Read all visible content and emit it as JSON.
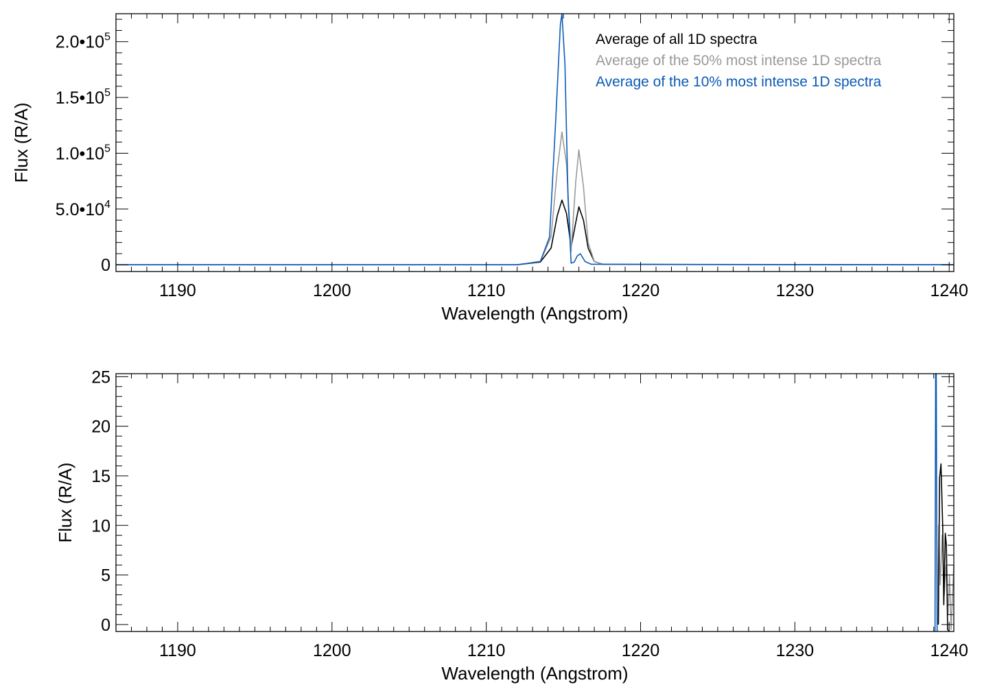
{
  "colors": {
    "all": "#000000",
    "top50": "#999999",
    "top10": "#0a5bb5"
  },
  "chart_data": [
    {
      "type": "line",
      "title": "",
      "xlabel": "Wavelength (Angstrom)",
      "ylabel": "Flux (R/A)",
      "xlim": [
        1186,
        1240.3
      ],
      "ylim": [
        -6000,
        225000
      ],
      "x_ticks": [
        1190,
        1200,
        1210,
        1220,
        1230,
        1240
      ],
      "x_tick_labels": [
        "1190",
        "1200",
        "1210",
        "1220",
        "1230",
        "1240"
      ],
      "y_ticks": [
        0,
        50000,
        100000,
        150000,
        200000
      ],
      "y_tick_labels": [
        {
          "mant": "0",
          "exp": ""
        },
        {
          "mant": "5.0•10",
          "exp": "4"
        },
        {
          "mant": "1.0•10",
          "exp": "5"
        },
        {
          "mant": "1.5•10",
          "exp": "5"
        },
        {
          "mant": "2.0•10",
          "exp": "5"
        }
      ],
      "legend": {
        "position": "top-right",
        "entries": [
          {
            "label": "Average of all 1D spectra",
            "color": "#000000"
          },
          {
            "label": "Average of the 50% most intense 1D spectra",
            "color": "#999999"
          },
          {
            "label": "Average of the 10% most intense 1D spectra",
            "color": "#0a5bb5"
          }
        ]
      },
      "series": [
        {
          "color": "#000000",
          "x": [
            1186,
            1212,
            1213.5,
            1214.2,
            1214.6,
            1214.9,
            1215.2,
            1215.5,
            1215.8,
            1216.0,
            1216.3,
            1216.6,
            1217.0,
            1217.6,
            1240.3
          ],
          "y": [
            0,
            0,
            2500,
            15000,
            44000,
            58000,
            46000,
            16000,
            38000,
            52000,
            40000,
            15000,
            3000,
            300,
            0
          ]
        },
        {
          "color": "#999999",
          "x": [
            1186,
            1212,
            1213.5,
            1214.2,
            1214.6,
            1214.9,
            1215.2,
            1215.5,
            1215.8,
            1216.0,
            1216.3,
            1216.6,
            1217.0,
            1217.6,
            1240.3
          ],
          "y": [
            0,
            0,
            3000,
            25000,
            85000,
            119000,
            90000,
            12000,
            75000,
            103000,
            70000,
            20000,
            3000,
            300,
            0
          ]
        },
        {
          "color": "#0a5bb5",
          "x": [
            1186,
            1212,
            1213.5,
            1214.1,
            1214.5,
            1214.8,
            1214.9,
            1215.1,
            1215.3,
            1215.5,
            1215.7,
            1215.9,
            1216.1,
            1216.4,
            1216.8,
            1240.3
          ],
          "y": [
            0,
            0,
            3000,
            25000,
            130000,
            215000,
            226000,
            180000,
            60000,
            1500,
            2500,
            8000,
            10000,
            3000,
            500,
            0
          ]
        }
      ]
    },
    {
      "type": "line",
      "title": "",
      "xlabel": "Wavelength (Angstrom)",
      "ylabel": "Flux (R/A)",
      "xlim": [
        1186,
        1240.3
      ],
      "ylim": [
        -0.7,
        25.3
      ],
      "x_ticks": [
        1190,
        1200,
        1210,
        1220,
        1230,
        1240
      ],
      "x_tick_labels": [
        "1190",
        "1200",
        "1210",
        "1220",
        "1230",
        "1240"
      ],
      "y_ticks": [
        0,
        5,
        10,
        15,
        20,
        25
      ],
      "y_tick_labels": [
        {
          "mant": "0",
          "exp": ""
        },
        {
          "mant": "5",
          "exp": ""
        },
        {
          "mant": "10",
          "exp": ""
        },
        {
          "mant": "15",
          "exp": ""
        },
        {
          "mant": "20",
          "exp": ""
        },
        {
          "mant": "25",
          "exp": ""
        }
      ],
      "series": [
        {
          "color": "#999999",
          "x": [
            1239.25,
            1239.32,
            1239.42,
            1239.55,
            1239.68,
            1239.8,
            1239.92,
            1240.02,
            1240.12,
            1240.22,
            1240.3
          ],
          "y": [
            0,
            10,
            4,
            9,
            3,
            6,
            1,
            5,
            -0.5,
            3,
            6
          ]
        },
        {
          "color": "#000000",
          "x": [
            1239.3,
            1239.38,
            1239.47,
            1239.58,
            1239.65,
            1239.75,
            1239.82,
            1239.9,
            1240.0
          ],
          "y": [
            0,
            14.8,
            16.2,
            10,
            2,
            9.2,
            8,
            -0.5,
            -0.7
          ]
        },
        {
          "color": "#0a5bb5",
          "x": [
            1239.08,
            1239.12,
            1239.16,
            1239.22
          ],
          "y": [
            -0.7,
            25.3,
            25.3,
            -0.7
          ]
        }
      ]
    }
  ]
}
